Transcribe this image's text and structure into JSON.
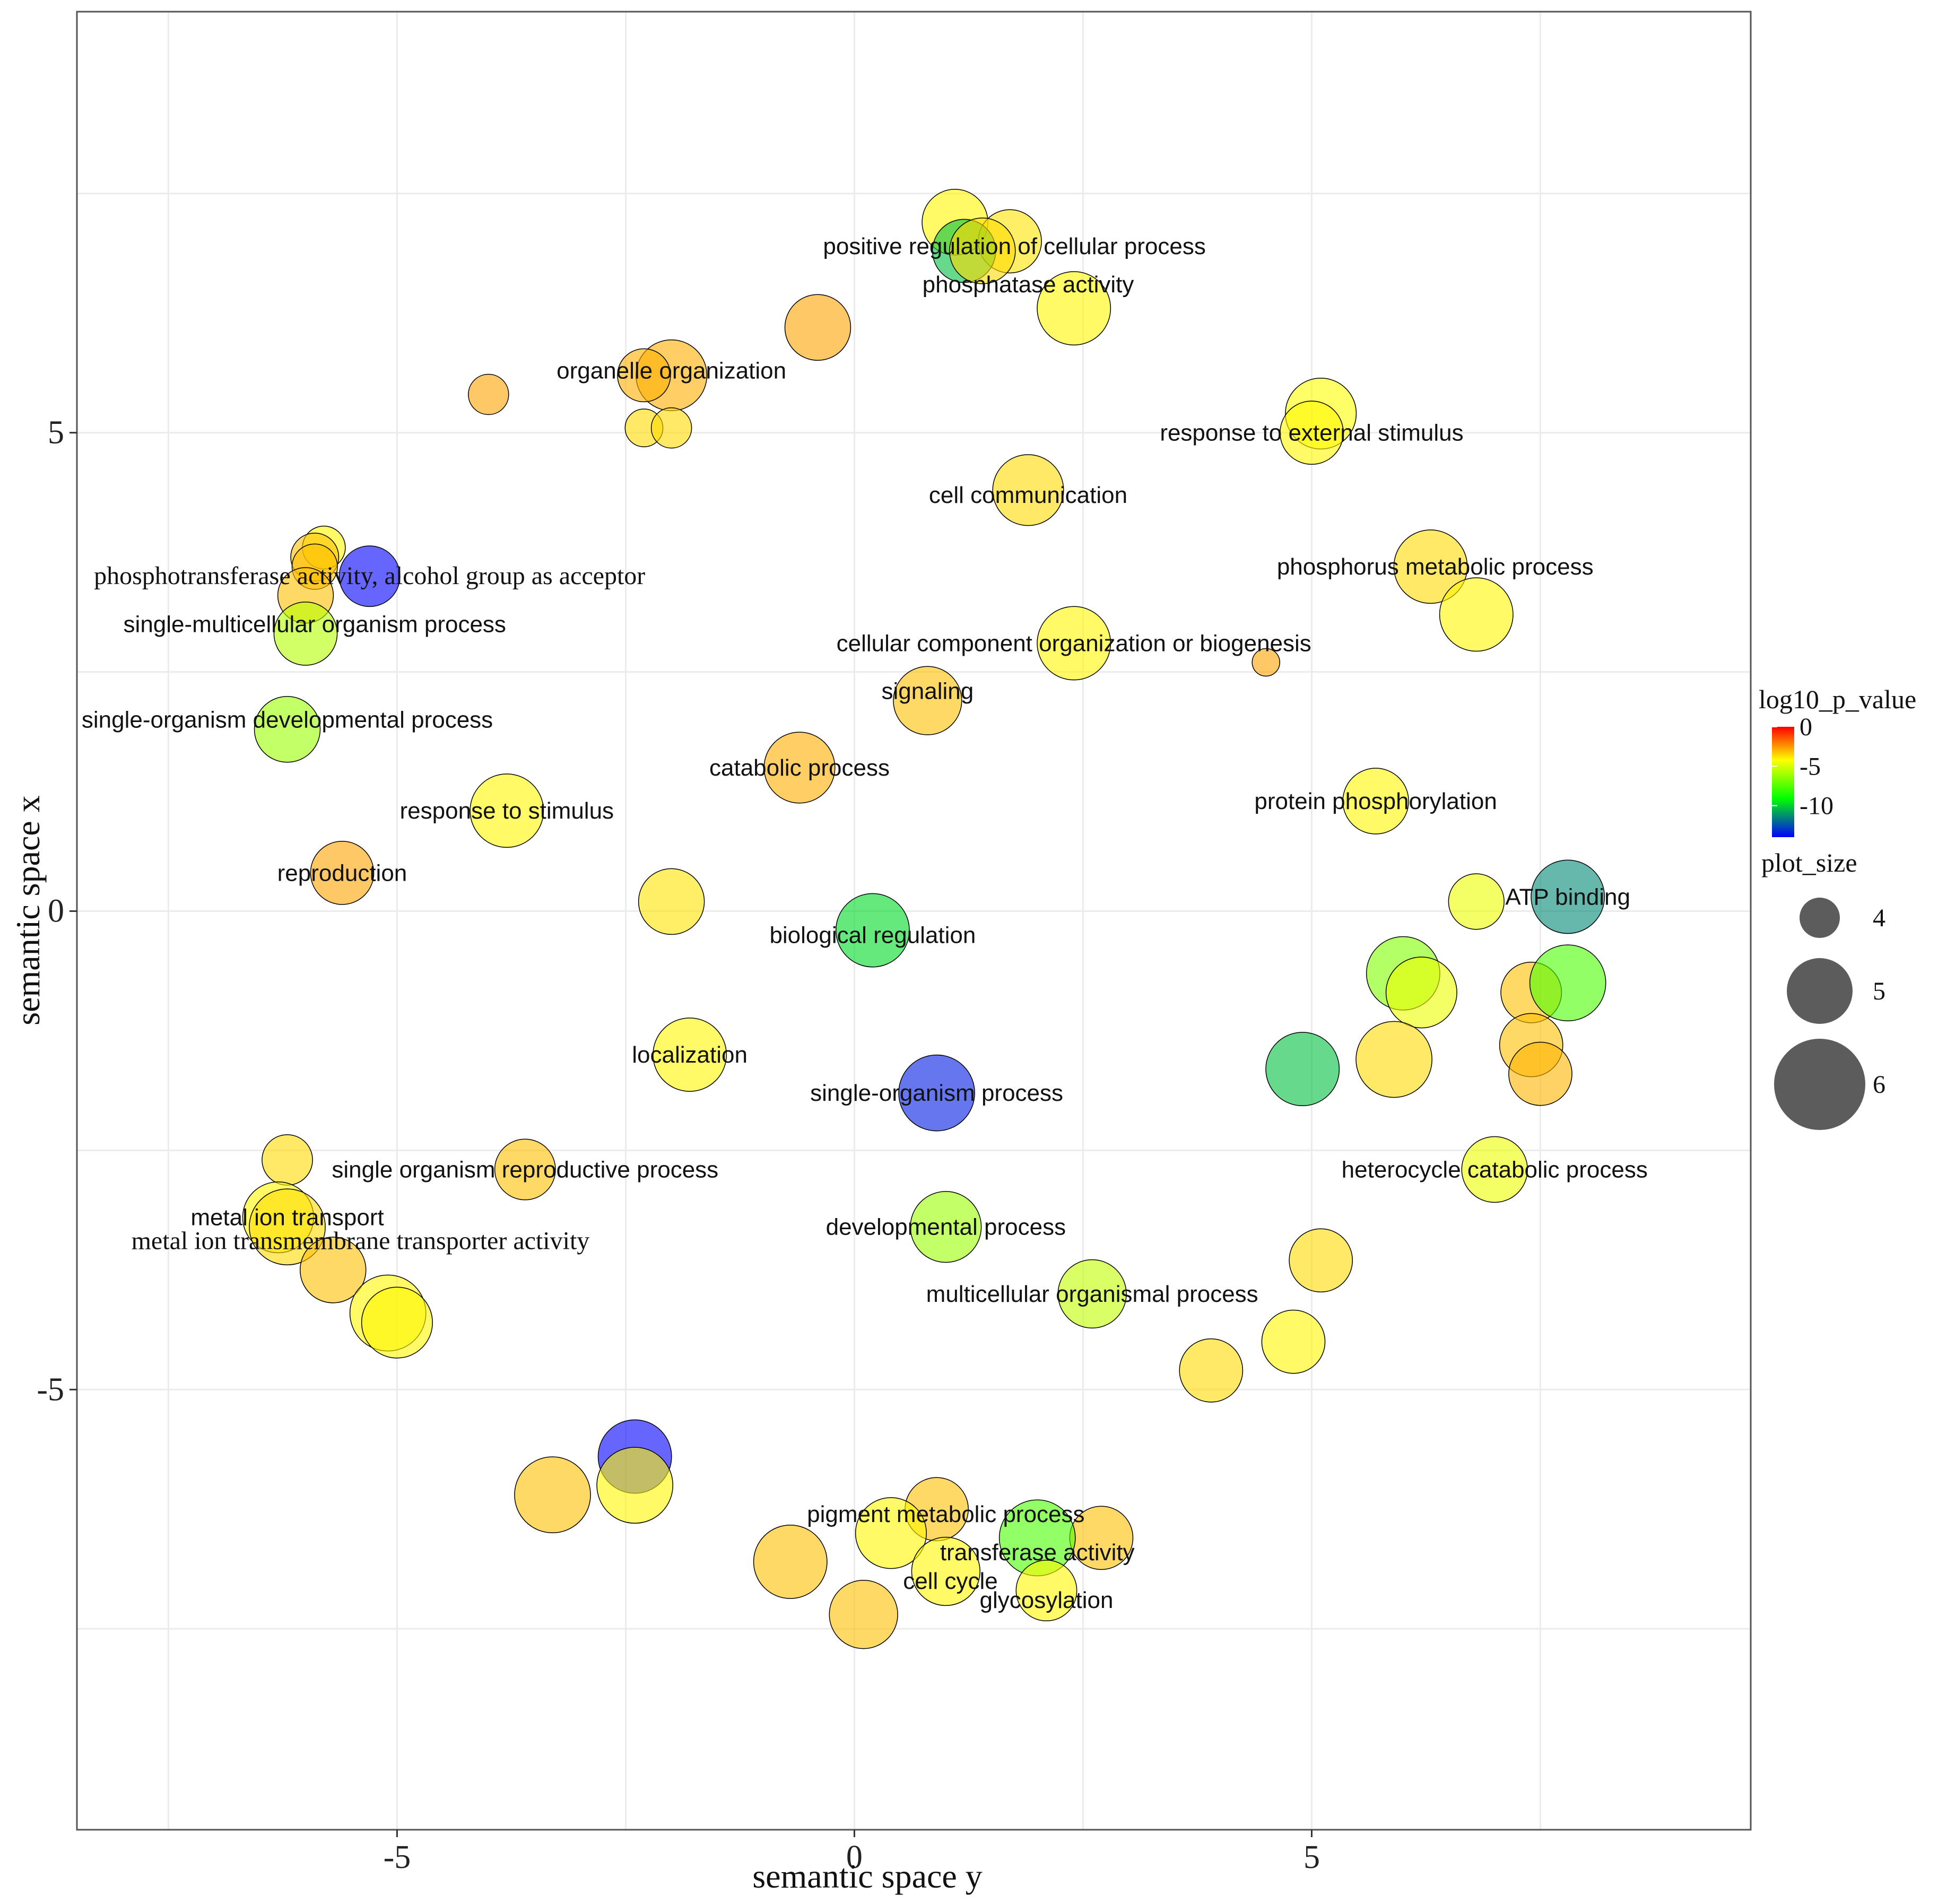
{
  "chart_data": {
    "type": "scatter",
    "xlabel": "semantic space y",
    "ylabel": "semantic space x",
    "xlim": [
      -8.5,
      9.8
    ],
    "ylim": [
      -9.6,
      9.4
    ],
    "x_ticks": [
      -5,
      0,
      5
    ],
    "x_tick_labels": [
      "-5",
      "0",
      "5"
    ],
    "y_ticks": [
      -5,
      0,
      5
    ],
    "y_tick_labels": [
      "-5",
      "0",
      "5"
    ],
    "grid": true,
    "legend": {
      "position": "right",
      "color_title": "log10_p_value",
      "color_ticks": [
        0,
        -5,
        -10
      ],
      "color_tick_labels": [
        "0",
        "-5",
        "-10"
      ],
      "color_range": [
        -14,
        0
      ],
      "color_stops": [
        "#0000ff",
        "#00ff00",
        "#ffff00",
        "#ff0000"
      ],
      "size_title": "plot_size",
      "size_values": [
        4,
        5,
        6
      ],
      "size_labels": [
        "4",
        "5",
        "6"
      ]
    },
    "points": [
      {
        "x": 1.1,
        "y": 7.2,
        "p": -4.5,
        "size": 5.0
      },
      {
        "x": 1.7,
        "y": 7.0,
        "p": -4.2,
        "size": 4.9
      },
      {
        "x": 1.2,
        "y": 6.9,
        "p": -10.5,
        "size": 4.9
      },
      {
        "x": 1.4,
        "y": 6.9,
        "p": -4.0,
        "size": 5.0
      },
      {
        "x": 2.4,
        "y": 6.3,
        "p": -4.5,
        "size": 5.3
      },
      {
        "x": -0.4,
        "y": 6.1,
        "p": -3.0,
        "size": 5.0
      },
      {
        "x": -2.0,
        "y": 5.6,
        "p": -3.2,
        "size": 5.2
      },
      {
        "x": -2.3,
        "y": 5.6,
        "p": -3.2,
        "size": 4.5
      },
      {
        "x": -4.0,
        "y": 5.4,
        "p": -3.0,
        "size": 4.0
      },
      {
        "x": -2.3,
        "y": 5.05,
        "p": -4.0,
        "size": 3.9
      },
      {
        "x": -2.0,
        "y": 5.05,
        "p": -4.0,
        "size": 4.0
      },
      {
        "x": 5.1,
        "y": 5.2,
        "p": -4.7,
        "size": 5.2
      },
      {
        "x": 5.0,
        "y": 5.0,
        "p": -4.5,
        "size": 4.9
      },
      {
        "x": 1.9,
        "y": 4.4,
        "p": -4.0,
        "size": 5.2
      },
      {
        "x": -5.8,
        "y": 3.8,
        "p": -4.5,
        "size": 4.1
      },
      {
        "x": -5.9,
        "y": 3.7,
        "p": -3.5,
        "size": 4.3
      },
      {
        "x": -5.9,
        "y": 3.6,
        "p": -3.5,
        "size": 4.2
      },
      {
        "x": -5.3,
        "y": 3.5,
        "p": -14.0,
        "size": 4.8
      },
      {
        "x": 6.3,
        "y": 3.6,
        "p": -4.0,
        "size": 5.3
      },
      {
        "x": -6.0,
        "y": 3.3,
        "p": -3.5,
        "size": 4.6
      },
      {
        "x": 6.8,
        "y": 3.1,
        "p": -4.5,
        "size": 5.3
      },
      {
        "x": -6.0,
        "y": 2.9,
        "p": -6.0,
        "size": 4.9
      },
      {
        "x": 2.4,
        "y": 2.8,
        "p": -4.5,
        "size": 5.3
      },
      {
        "x": 4.5,
        "y": 2.6,
        "p": -3.0,
        "size": 3.5
      },
      {
        "x": 0.8,
        "y": 2.2,
        "p": -3.5,
        "size": 5.1
      },
      {
        "x": -6.2,
        "y": 1.9,
        "p": -6.5,
        "size": 5.0
      },
      {
        "x": -0.6,
        "y": 1.5,
        "p": -3.2,
        "size": 5.2
      },
      {
        "x": 5.7,
        "y": 1.15,
        "p": -4.5,
        "size": 5.0
      },
      {
        "x": -3.8,
        "y": 1.05,
        "p": -4.5,
        "size": 5.3
      },
      {
        "x": -5.6,
        "y": 0.4,
        "p": -3.0,
        "size": 4.9
      },
      {
        "x": -2.0,
        "y": 0.1,
        "p": -4.2,
        "size": 5.0
      },
      {
        "x": 6.8,
        "y": 0.1,
        "p": -5.0,
        "size": 4.6
      },
      {
        "x": 7.8,
        "y": 0.15,
        "p": -11.5,
        "size": 5.3
      },
      {
        "x": 0.2,
        "y": -0.2,
        "p": -10.0,
        "size": 5.3
      },
      {
        "x": 6.0,
        "y": -0.65,
        "p": -7.0,
        "size": 5.3
      },
      {
        "x": 6.2,
        "y": -0.85,
        "p": -5.0,
        "size": 5.2
      },
      {
        "x": 7.4,
        "y": -0.85,
        "p": -3.5,
        "size": 4.8
      },
      {
        "x": 7.8,
        "y": -0.75,
        "p": -8.0,
        "size": 5.4
      },
      {
        "x": -1.8,
        "y": -1.5,
        "p": -4.5,
        "size": 5.3
      },
      {
        "x": 7.4,
        "y": -1.4,
        "p": -3.5,
        "size": 4.9
      },
      {
        "x": 5.9,
        "y": -1.55,
        "p": -4.0,
        "size": 5.4
      },
      {
        "x": 7.5,
        "y": -1.7,
        "p": -3.3,
        "size": 4.9
      },
      {
        "x": 0.9,
        "y": -1.9,
        "p": -13.5,
        "size": 5.4
      },
      {
        "x": 4.9,
        "y": -1.65,
        "p": -10.5,
        "size": 5.3
      },
      {
        "x": -6.2,
        "y": -2.6,
        "p": -4.0,
        "size": 4.4
      },
      {
        "x": -3.6,
        "y": -2.7,
        "p": -3.5,
        "size": 4.8
      },
      {
        "x": 7.0,
        "y": -2.7,
        "p": -5.0,
        "size": 5.0
      },
      {
        "x": -6.3,
        "y": -3.2,
        "p": -4.5,
        "size": 5.2
      },
      {
        "x": -6.2,
        "y": -3.3,
        "p": -4.0,
        "size": 5.4
      },
      {
        "x": 1.0,
        "y": -3.3,
        "p": -6.5,
        "size": 5.2
      },
      {
        "x": -5.7,
        "y": -3.75,
        "p": -3.5,
        "size": 5.0
      },
      {
        "x": 5.1,
        "y": -3.65,
        "p": -4.0,
        "size": 4.9
      },
      {
        "x": -5.1,
        "y": -4.2,
        "p": -4.5,
        "size": 5.4
      },
      {
        "x": -5.0,
        "y": -4.3,
        "p": -4.5,
        "size": 5.2
      },
      {
        "x": 2.6,
        "y": -4.0,
        "p": -5.8,
        "size": 5.1
      },
      {
        "x": 4.8,
        "y": -4.5,
        "p": -4.5,
        "size": 4.9
      },
      {
        "x": 3.9,
        "y": -4.8,
        "p": -4.0,
        "size": 4.9
      },
      {
        "x": -2.4,
        "y": -5.7,
        "p": -14.0,
        "size": 5.3
      },
      {
        "x": -3.3,
        "y": -6.1,
        "p": -3.5,
        "size": 5.4
      },
      {
        "x": -2.4,
        "y": -6.0,
        "p": -4.5,
        "size": 5.4
      },
      {
        "x": 0.9,
        "y": -6.25,
        "p": -3.5,
        "size": 4.9
      },
      {
        "x": 0.4,
        "y": -6.5,
        "p": -4.5,
        "size": 5.2
      },
      {
        "x": 2.7,
        "y": -6.55,
        "p": -3.5,
        "size": 4.9
      },
      {
        "x": 2.0,
        "y": -6.55,
        "p": -8.0,
        "size": 5.4
      },
      {
        "x": -0.7,
        "y": -6.8,
        "p": -3.5,
        "size": 5.3
      },
      {
        "x": 1.0,
        "y": -6.9,
        "p": -4.5,
        "size": 5.1
      },
      {
        "x": 2.1,
        "y": -7.1,
        "p": -4.5,
        "size": 4.8
      },
      {
        "x": 0.1,
        "y": -7.35,
        "p": -3.5,
        "size": 5.1
      }
    ],
    "labels": [
      {
        "text": "positive regulation of cellular process",
        "x": 1.75,
        "y": 6.95,
        "serif": false
      },
      {
        "text": "phosphatase activity",
        "x": 1.9,
        "y": 6.55,
        "serif": false
      },
      {
        "text": "organelle organization",
        "x": -2.0,
        "y": 5.65,
        "serif": false
      },
      {
        "text": "response to external stimulus",
        "x": 5.0,
        "y": 5.0,
        "serif": false
      },
      {
        "text": "cell communication",
        "x": 1.9,
        "y": 4.35,
        "serif": false
      },
      {
        "text": "phosphotransferase activity, alcohol group as acceptor",
        "x": -5.3,
        "y": 3.5,
        "serif": true
      },
      {
        "text": "phosphorus metabolic process",
        "x": 6.35,
        "y": 3.6,
        "serif": false
      },
      {
        "text": "single-multicellular organism process",
        "x": -5.9,
        "y": 3.0,
        "serif": false
      },
      {
        "text": "cellular component organization or biogenesis",
        "x": 2.4,
        "y": 2.8,
        "serif": false
      },
      {
        "text": "signaling",
        "x": 0.8,
        "y": 2.3,
        "serif": false
      },
      {
        "text": "single-organism developmental process",
        "x": -6.2,
        "y": 2.0,
        "serif": false
      },
      {
        "text": "catabolic process",
        "x": -0.6,
        "y": 1.5,
        "serif": false
      },
      {
        "text": "protein phosphorylation",
        "x": 5.7,
        "y": 1.15,
        "serif": false
      },
      {
        "text": "response to stimulus",
        "x": -3.8,
        "y": 1.05,
        "serif": false
      },
      {
        "text": "reproduction",
        "x": -5.6,
        "y": 0.4,
        "serif": false
      },
      {
        "text": "ATP binding",
        "x": 7.8,
        "y": 0.15,
        "serif": false
      },
      {
        "text": "biological regulation",
        "x": 0.2,
        "y": -0.25,
        "serif": false
      },
      {
        "text": "localization",
        "x": -1.8,
        "y": -1.5,
        "serif": false
      },
      {
        "text": "single-organism process",
        "x": 0.9,
        "y": -1.9,
        "serif": false
      },
      {
        "text": "single organism reproductive process",
        "x": -3.6,
        "y": -2.7,
        "serif": false
      },
      {
        "text": "heterocycle catabolic process",
        "x": 7.0,
        "y": -2.7,
        "serif": false
      },
      {
        "text": "metal ion transport",
        "x": -6.2,
        "y": -3.2,
        "serif": false
      },
      {
        "text": "metal ion transmembrane transporter activity",
        "x": -5.4,
        "y": -3.45,
        "serif": true
      },
      {
        "text": "developmental process",
        "x": 1.0,
        "y": -3.3,
        "serif": false
      },
      {
        "text": "multicellular organismal process",
        "x": 2.6,
        "y": -4.0,
        "serif": false
      },
      {
        "text": "pigment metabolic process",
        "x": 1.0,
        "y": -6.3,
        "serif": false
      },
      {
        "text": "transferase activity",
        "x": 2.0,
        "y": -6.7,
        "serif": false
      },
      {
        "text": "cell cycle",
        "x": 1.05,
        "y": -7.0,
        "serif": false
      },
      {
        "text": "glycosylation",
        "x": 2.1,
        "y": -7.2,
        "serif": false
      }
    ]
  }
}
